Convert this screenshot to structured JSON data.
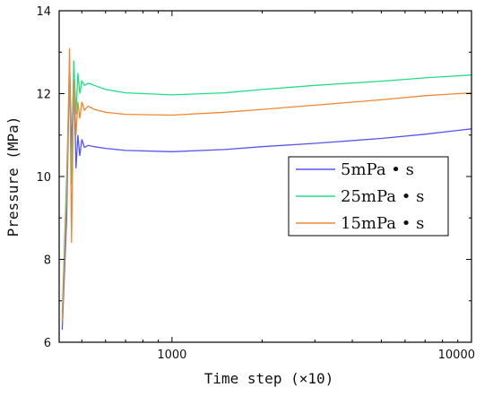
{
  "chart_data": {
    "type": "line",
    "xlabel": "Time step (×10)",
    "ylabel": "Pressure (MPa)",
    "x_scale": "log",
    "xlim": [
      420,
      10000
    ],
    "ylim": [
      6,
      14
    ],
    "x_ticks": [
      1000,
      10000
    ],
    "x_tick_labels": [
      "1000",
      "10000"
    ],
    "y_ticks": [
      6,
      8,
      10,
      12,
      14
    ],
    "y_tick_labels": [
      "6",
      "8",
      "10",
      "12",
      "14"
    ],
    "grid": false,
    "legend_position": "center-right",
    "series": [
      {
        "name": "5mPa • s",
        "color": "#5555ee",
        "x": [
          430,
          445,
          455,
          462,
          470,
          478,
          485,
          492,
          500,
          510,
          525,
          550,
          600,
          700,
          1000,
          1500,
          2000,
          3000,
          5000,
          7000,
          10000
        ],
        "y": [
          6.3,
          9.0,
          12.8,
          10.6,
          12.5,
          10.2,
          11.0,
          10.5,
          10.9,
          10.7,
          10.75,
          10.72,
          10.68,
          10.63,
          10.6,
          10.65,
          10.72,
          10.8,
          10.92,
          11.02,
          11.15
        ]
      },
      {
        "name": "25mPa • s",
        "color": "#22dd88",
        "x": [
          430,
          445,
          455,
          462,
          470,
          478,
          485,
          492,
          500,
          510,
          525,
          550,
          600,
          700,
          1000,
          1500,
          2000,
          3000,
          5000,
          7000,
          10000
        ],
        "y": [
          6.7,
          10.0,
          12.6,
          9.8,
          12.8,
          11.5,
          12.5,
          12.0,
          12.3,
          12.2,
          12.25,
          12.2,
          12.1,
          12.02,
          11.97,
          12.02,
          12.1,
          12.2,
          12.3,
          12.38,
          12.45
        ]
      },
      {
        "name": "15mPa • s",
        "color": "#ee8833",
        "x": [
          430,
          445,
          455,
          462,
          470,
          478,
          485,
          492,
          500,
          510,
          525,
          550,
          600,
          700,
          1000,
          1500,
          2000,
          3000,
          5000,
          7000,
          10000
        ],
        "y": [
          6.5,
          9.5,
          13.1,
          8.4,
          12.3,
          11.0,
          11.8,
          11.4,
          11.8,
          11.6,
          11.7,
          11.62,
          11.55,
          11.5,
          11.48,
          11.55,
          11.62,
          11.72,
          11.85,
          11.95,
          12.02
        ]
      }
    ]
  }
}
